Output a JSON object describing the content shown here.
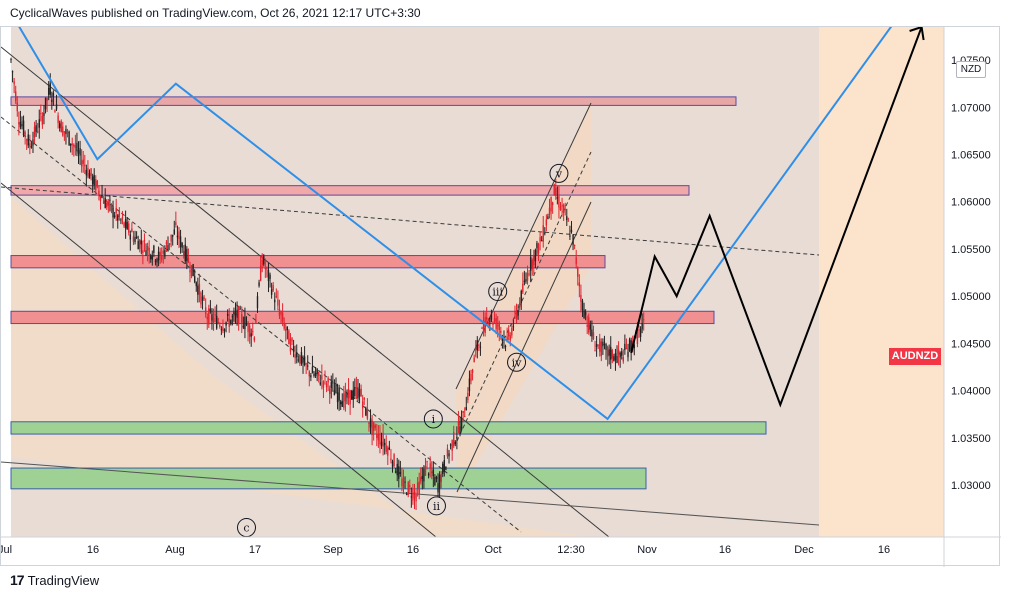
{
  "header": {
    "published_by": "CyclicalWaves published on TradingView.com, Oct 26, 2021 12:17 UTC+3:30"
  },
  "footer": {
    "brand": "TradingView",
    "logo_text": "17"
  },
  "chart_data": {
    "type": "candlestick",
    "symbol": "AUDNZD",
    "currency": "NZD",
    "y_range": [
      1.0245,
      1.0785
    ],
    "y_ticks": [
      "1.07500",
      "1.07000",
      "1.06500",
      "1.06000",
      "1.05500",
      "1.05000",
      "1.04500",
      "1.04000",
      "1.03500",
      "1.03000"
    ],
    "x_ticks": [
      "Jul",
      "16",
      "Aug",
      "17",
      "Sep",
      "16",
      "Oct",
      "12:30",
      "Nov",
      "16",
      "Dec",
      "16"
    ],
    "last_price_color": "#f23645",
    "approx_price_path": [
      [
        0,
        1.075
      ],
      [
        5,
        1.069
      ],
      [
        12,
        1.066
      ],
      [
        20,
        1.069
      ],
      [
        25,
        1.072
      ],
      [
        32,
        1.068
      ],
      [
        40,
        1.066
      ],
      [
        50,
        1.063
      ],
      [
        60,
        1.06
      ],
      [
        70,
        1.058
      ],
      [
        80,
        1.056
      ],
      [
        95,
        1.054
      ],
      [
        105,
        1.057
      ],
      [
        115,
        1.053
      ],
      [
        125,
        1.048
      ],
      [
        135,
        1.047
      ],
      [
        145,
        1.048
      ],
      [
        155,
        1.046
      ],
      [
        160,
        1.054
      ],
      [
        168,
        1.05
      ],
      [
        178,
        1.045
      ],
      [
        190,
        1.042
      ],
      [
        200,
        1.041
      ],
      [
        212,
        1.039
      ],
      [
        222,
        1.04
      ],
      [
        230,
        1.036
      ],
      [
        240,
        1.034
      ],
      [
        250,
        1.03
      ],
      [
        258,
        1.029
      ],
      [
        265,
        1.032
      ],
      [
        272,
        1.03
      ],
      [
        280,
        1.034
      ],
      [
        288,
        1.037
      ],
      [
        296,
        1.044
      ],
      [
        304,
        1.048
      ],
      [
        310,
        1.047
      ],
      [
        316,
        1.045
      ],
      [
        322,
        1.048
      ],
      [
        330,
        1.053
      ],
      [
        338,
        1.056
      ],
      [
        346,
        1.061
      ],
      [
        352,
        1.059
      ],
      [
        358,
        1.056
      ],
      [
        364,
        1.049
      ],
      [
        372,
        1.045
      ],
      [
        380,
        1.044
      ],
      [
        388,
        1.0435
      ],
      [
        396,
        1.045
      ],
      [
        404,
        1.047
      ]
    ],
    "wave_labels": [
      {
        "label": "i",
        "x": 269,
        "price": 1.037
      },
      {
        "label": "ii",
        "x": 271,
        "price": 1.0278
      },
      {
        "label": "iii",
        "x": 310,
        "price": 1.0505
      },
      {
        "label": "iv",
        "x": 322,
        "price": 1.043
      },
      {
        "label": "v",
        "x": 349,
        "price": 1.063
      },
      {
        "label": "c",
        "x": 150,
        "price": 1.0255
      }
    ],
    "projection_black": [
      [
        395,
        1.044
      ],
      [
        410,
        1.0542
      ],
      [
        424,
        1.05
      ],
      [
        445,
        1.0585
      ],
      [
        490,
        1.0385
      ],
      [
        580,
        1.0785
      ]
    ],
    "projection_blue": [
      [
        0,
        1.08
      ],
      [
        55,
        1.0645
      ],
      [
        105,
        1.0725
      ],
      [
        380,
        1.037
      ],
      [
        580,
        1.083
      ]
    ],
    "horizontal_zones": [
      {
        "type": "resistance",
        "top": 1.0711,
        "bottom": 1.0702,
        "color": "#e7a7a7",
        "x_end": 735
      },
      {
        "type": "resistance",
        "top": 1.0617,
        "bottom": 1.0607,
        "color": "#f0a8a8",
        "x_end": 688
      },
      {
        "type": "resistance",
        "top": 1.0543,
        "bottom": 1.053,
        "color": "#f09090",
        "x_end": 604
      },
      {
        "type": "resistance",
        "top": 1.0484,
        "bottom": 1.0471,
        "color": "#f09090",
        "x_end": 713
      },
      {
        "type": "support",
        "top": 1.0367,
        "bottom": 1.0354,
        "color": "#9fd094",
        "x_end": 765
      },
      {
        "type": "support",
        "top": 1.0318,
        "bottom": 1.0296,
        "color": "#9fd094",
        "x_end": 645
      }
    ]
  }
}
